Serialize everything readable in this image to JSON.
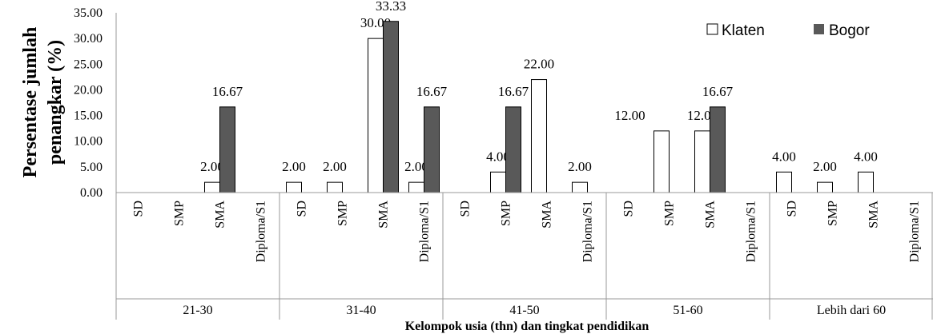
{
  "chart_data": {
    "type": "bar",
    "ylabel": "Persentase jumlah penangkar (%)",
    "ylabel_lines": [
      "Persentase jumlah",
      "penangkar (%)"
    ],
    "xlabel": "Kelompok usia (thn) dan tingkat pendidikan",
    "ylim": [
      0,
      35
    ],
    "yticks": [
      "0.00",
      "5.00",
      "10.00",
      "15.00",
      "20.00",
      "25.00",
      "30.00",
      "35.00"
    ],
    "groups": [
      "21-30",
      "31-40",
      "41-50",
      "51-60",
      "Lebih dari 60"
    ],
    "subcategories": [
      "SD",
      "SMP",
      "SMA",
      "Diploma/S1"
    ],
    "series": [
      {
        "name": "Klaten",
        "color": "#ffffff",
        "values": [
          [
            0,
            0,
            2.0,
            0
          ],
          [
            2.0,
            2.0,
            30.0,
            2.0
          ],
          [
            0,
            4.0,
            22.0,
            2.0
          ],
          [
            0,
            12.0,
            12.0,
            0
          ],
          [
            4.0,
            2.0,
            4.0,
            0
          ]
        ],
        "labels": [
          [
            "",
            "",
            "2.00",
            ""
          ],
          [
            "2.00",
            "2.00",
            "30.00",
            "2.00"
          ],
          [
            "",
            "4.00",
            "22.00",
            "2.00"
          ],
          [
            "",
            "12.00",
            "12.00",
            ""
          ],
          [
            "4.00",
            "2.00",
            "4.00",
            ""
          ]
        ]
      },
      {
        "name": "Bogor",
        "color": "#595959",
        "values": [
          [
            0,
            0,
            16.67,
            0
          ],
          [
            0,
            0,
            33.33,
            16.67
          ],
          [
            0,
            16.67,
            0,
            0
          ],
          [
            0,
            0,
            16.67,
            0
          ],
          [
            0,
            0,
            0,
            0
          ]
        ],
        "labels": [
          [
            "",
            "",
            "16.67",
            ""
          ],
          [
            "",
            "",
            "33.33",
            "16.67"
          ],
          [
            "",
            "16.67",
            "",
            ""
          ],
          [
            "",
            "",
            "16.67",
            ""
          ],
          [
            "",
            "",
            "",
            ""
          ]
        ]
      }
    ],
    "legend": [
      "Klaten",
      "Bogor"
    ],
    "legend_position": "top-right",
    "grid": false
  }
}
